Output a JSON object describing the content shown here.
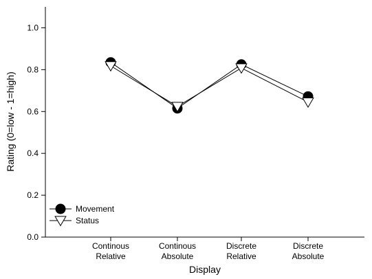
{
  "chart_data": {
    "type": "line",
    "xlabel": "Display",
    "ylabel": "Rating (0=low - 1=high)",
    "ylim": [
      0,
      1.1
    ],
    "yticks": [
      "0.0",
      "0.2",
      "0.4",
      "0.6",
      "0.8",
      "1.0"
    ],
    "categories": [
      [
        "Continous",
        "Relative"
      ],
      [
        "Continous",
        "Absolute"
      ],
      [
        "Discrete",
        "Relative"
      ],
      [
        "Discrete",
        "Absolute"
      ]
    ],
    "series": [
      {
        "name": "Movement",
        "marker": "filled-circle",
        "color": "#000000",
        "values": [
          0.835,
          0.615,
          0.825,
          0.672
        ]
      },
      {
        "name": "Status",
        "marker": "open-triangle-down",
        "color": "#000000",
        "values": [
          0.818,
          0.624,
          0.808,
          0.645
        ]
      }
    ],
    "legend_position": "bottom-left",
    "grid": false
  }
}
